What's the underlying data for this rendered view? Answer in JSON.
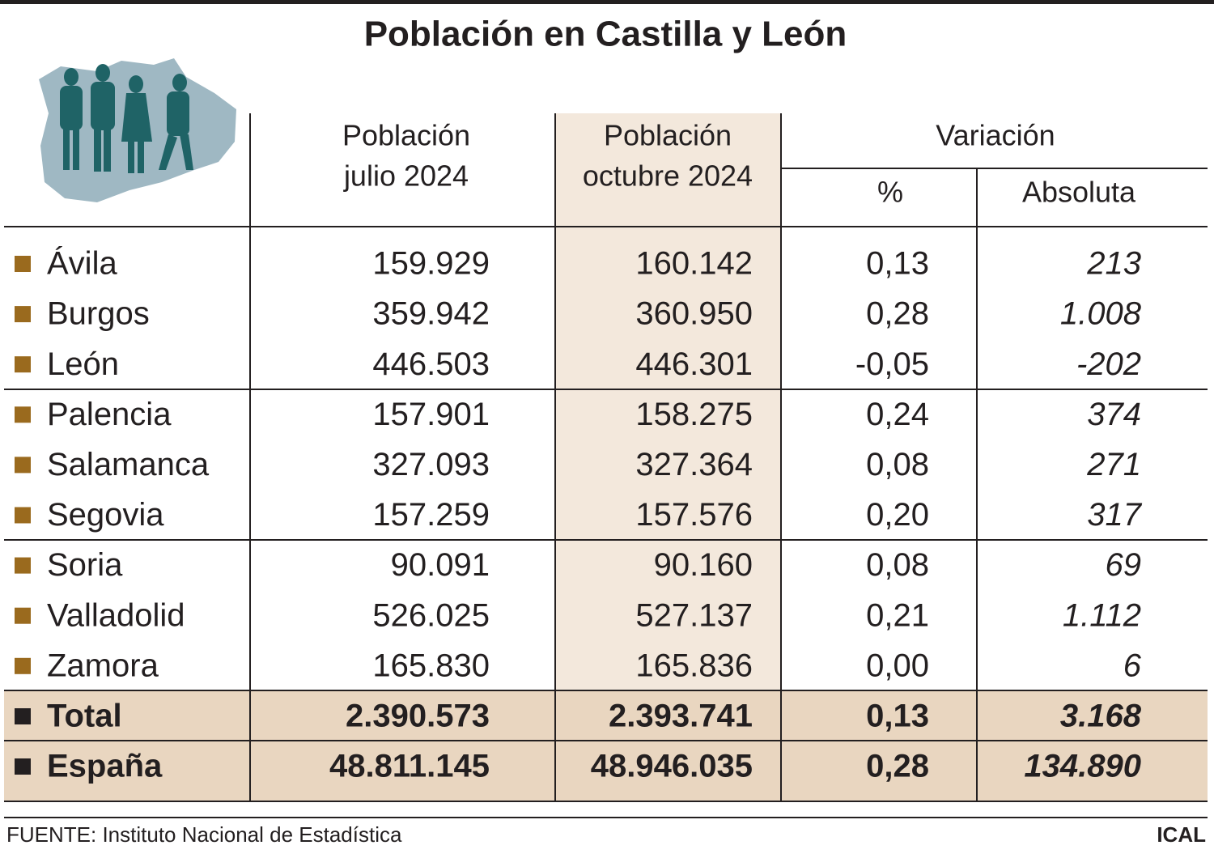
{
  "title": "Población en Castilla y León",
  "header": {
    "col1": [
      "Población",
      "julio 2024"
    ],
    "col2": [
      "Población",
      "octubre 2024"
    ],
    "variation": "Variación",
    "pct": "%",
    "abs": "Absoluta"
  },
  "rows": [
    [
      "Ávila",
      "159.929",
      "160.142",
      "0,13",
      "213"
    ],
    [
      "Burgos",
      "359.942",
      "360.950",
      "0,28",
      "1.008"
    ],
    [
      "León",
      "446.503",
      "446.301",
      "-0,05",
      "-202"
    ],
    [
      "Palencia",
      "157.901",
      "158.275",
      "0,24",
      "374"
    ],
    [
      "Salamanca",
      "327.093",
      "327.364",
      "0,08",
      "271"
    ],
    [
      "Segovia",
      "157.259",
      "157.576",
      "0,20",
      "317"
    ],
    [
      "Soria",
      "90.091",
      "90.160",
      "0,08",
      "69"
    ],
    [
      "Valladolid",
      "526.025",
      "527.137",
      "0,21",
      "1.112"
    ],
    [
      "Zamora",
      "165.830",
      "165.836",
      "0,00",
      "6"
    ]
  ],
  "summary_rows": [
    [
      "Total",
      "2.390.573",
      "2.393.741",
      "0,13",
      "3.168"
    ],
    [
      "España",
      "48.811.145",
      "48.946.035",
      "0,28",
      "134.890"
    ]
  ],
  "footer": {
    "source": "FUENTE: Instituto Nacional de Estadística",
    "agency": "ICAL"
  }
}
